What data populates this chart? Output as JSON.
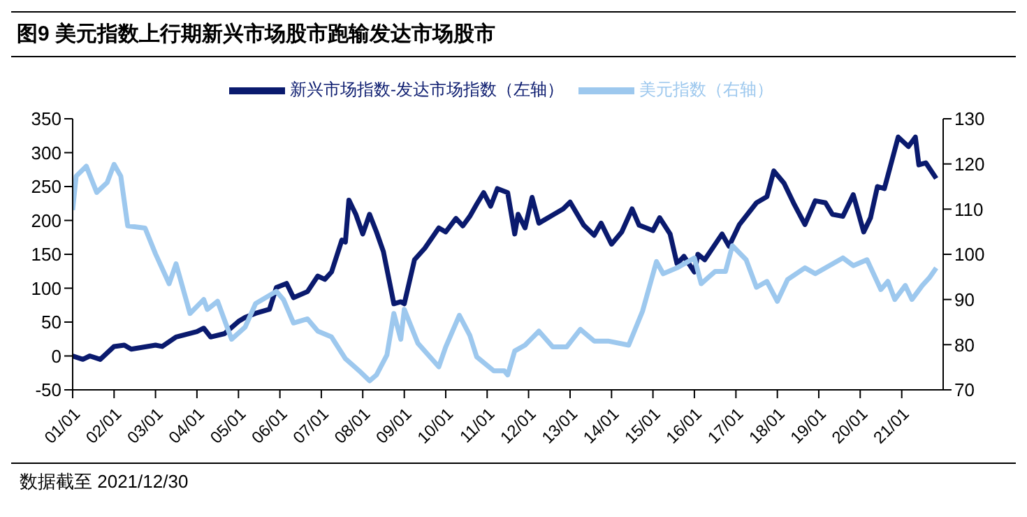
{
  "chart_data": {
    "type": "line",
    "title": "图9  美元指数上行期新兴市场股市跑输发达市场股市",
    "annotations": [
      "数据截至 2021/12/30"
    ],
    "xlim": [
      "2001-01",
      "2022-01"
    ],
    "xticks": [
      {
        "value": "2001-01",
        "label": "01/01"
      },
      {
        "value": "2002-01",
        "label": "02/01"
      },
      {
        "value": "2003-01",
        "label": "03/01"
      },
      {
        "value": "2004-01",
        "label": "04/01"
      },
      {
        "value": "2005-01",
        "label": "05/01"
      },
      {
        "value": "2006-01",
        "label": "06/01"
      },
      {
        "value": "2007-01",
        "label": "07/01"
      },
      {
        "value": "2008-01",
        "label": "08/01"
      },
      {
        "value": "2009-01",
        "label": "09/01"
      },
      {
        "value": "2010-01",
        "label": "10/01"
      },
      {
        "value": "2011-01",
        "label": "11/01"
      },
      {
        "value": "2012-01",
        "label": "12/01"
      },
      {
        "value": "2013-01",
        "label": "13/01"
      },
      {
        "value": "2014-01",
        "label": "14/01"
      },
      {
        "value": "2015-01",
        "label": "15/01"
      },
      {
        "value": "2016-01",
        "label": "16/01"
      },
      {
        "value": "2017-01",
        "label": "17/01"
      },
      {
        "value": "2018-01",
        "label": "18/01"
      },
      {
        "value": "2019-01",
        "label": "19/01"
      },
      {
        "value": "2020-01",
        "label": "20/01"
      },
      {
        "value": "2021-01",
        "label": "21/01"
      }
    ],
    "ylim": [
      -50,
      350
    ],
    "yticks": [
      -50,
      0,
      50,
      100,
      150,
      200,
      250,
      300,
      350
    ],
    "y2lim": [
      70,
      130
    ],
    "y2ticks": [
      70,
      80,
      90,
      100,
      110,
      120,
      130
    ],
    "legend": "top",
    "grid": false,
    "marker": "none",
    "line_style": "solid",
    "series": [
      {
        "name": "新兴市场指数-发达市场指数（左轴）",
        "color": "#0a1a6e",
        "axis": "y",
        "x": [
          "2001-01",
          "2001-04",
          "2001-06",
          "2001-09",
          "2002-01",
          "2002-04",
          "2002-06",
          "2003-01",
          "2003-03",
          "2003-07",
          "2004-01",
          "2004-03",
          "2004-05",
          "2004-09",
          "2005-01",
          "2005-03",
          "2005-06",
          "2005-10",
          "2005-12",
          "2006-03",
          "2006-05",
          "2006-09",
          "2006-12",
          "2007-02",
          "2007-04",
          "2007-07",
          "2007-08",
          "2007-09",
          "2007-11",
          "2008-01",
          "2008-03",
          "2008-05",
          "2008-07",
          "2008-10",
          "2008-12",
          "2009-01",
          "2009-04",
          "2009-07",
          "2009-11",
          "2010-01",
          "2010-04",
          "2010-06",
          "2010-08",
          "2010-10",
          "2010-12",
          "2011-02",
          "2011-04",
          "2011-07",
          "2011-09",
          "2011-10",
          "2011-12",
          "2012-02",
          "2012-04",
          "2012-08",
          "2012-11",
          "2013-01",
          "2013-05",
          "2013-08",
          "2013-10",
          "2014-01",
          "2014-04",
          "2014-07",
          "2014-09",
          "2015-01",
          "2015-03",
          "2015-06",
          "2015-08",
          "2015-10",
          "2016-01",
          "2016-02",
          "2016-04",
          "2016-09",
          "2016-11",
          "2017-02",
          "2017-07",
          "2017-10",
          "2017-12",
          "2018-03",
          "2018-06",
          "2018-09",
          "2018-12",
          "2019-03",
          "2019-05",
          "2019-08",
          "2019-11",
          "2020-02",
          "2020-04",
          "2020-06",
          "2020-08",
          "2020-12",
          "2021-03",
          "2021-05",
          "2021-06",
          "2021-08",
          "2021-11"
        ],
        "values": [
          0,
          -5,
          0,
          -5,
          14,
          16,
          10,
          16,
          14,
          28,
          36,
          41,
          28,
          33,
          51,
          57,
          63,
          69,
          101,
          107,
          86,
          95,
          118,
          113,
          124,
          171,
          168,
          230,
          209,
          180,
          209,
          183,
          154,
          77,
          80,
          77,
          142,
          159,
          189,
          183,
          203,
          192,
          206,
          224,
          241,
          221,
          247,
          241,
          180,
          209,
          189,
          234,
          196,
          208,
          217,
          227,
          193,
          178,
          196,
          165,
          183,
          217,
          193,
          185,
          204,
          180,
          136,
          147,
          124,
          150,
          142,
          180,
          162,
          194,
          226,
          235,
          273,
          255,
          223,
          194,
          229,
          226,
          209,
          206,
          238,
          183,
          204,
          250,
          247,
          323,
          309,
          323,
          282,
          285,
          262
        ]
      },
      {
        "name": "美元指数（右轴）",
        "color": "#9dc8ee",
        "axis": "y2",
        "x": [
          "2001-01",
          "2001-02",
          "2001-05",
          "2001-08",
          "2001-11",
          "2002-01",
          "2002-03",
          "2002-05",
          "2002-10",
          "2003-01",
          "2003-05",
          "2003-07",
          "2003-11",
          "2004-03",
          "2004-04",
          "2004-07",
          "2004-11",
          "2005-03",
          "2005-06",
          "2005-12",
          "2006-02",
          "2006-05",
          "2006-09",
          "2006-12",
          "2007-04",
          "2007-08",
          "2007-12",
          "2008-03",
          "2008-05",
          "2008-08",
          "2008-10",
          "2008-12",
          "2009-01",
          "2009-05",
          "2009-11",
          "2010-01",
          "2010-05",
          "2010-08",
          "2010-10",
          "2011-03",
          "2011-06",
          "2011-07",
          "2011-09",
          "2011-12",
          "2012-04",
          "2012-08",
          "2012-12",
          "2013-04",
          "2013-08",
          "2013-12",
          "2014-06",
          "2014-10",
          "2015-02",
          "2015-04",
          "2015-08",
          "2016-01",
          "2016-03",
          "2016-07",
          "2016-10",
          "2016-12",
          "2017-04",
          "2017-07",
          "2017-10",
          "2018-01",
          "2018-04",
          "2018-09",
          "2018-12",
          "2019-08",
          "2019-11",
          "2020-03",
          "2020-07",
          "2020-09",
          "2020-11",
          "2021-02",
          "2021-04",
          "2021-07",
          "2021-09",
          "2021-11"
        ],
        "values": [
          109.8,
          117.3,
          119.5,
          113.7,
          115.9,
          119.9,
          117.3,
          106.3,
          105.8,
          100.1,
          93.5,
          97.9,
          86.9,
          90.0,
          87.8,
          89.6,
          81.2,
          83.9,
          89.1,
          91.8,
          90.0,
          84.8,
          85.7,
          83.0,
          81.7,
          76.9,
          74.2,
          72.0,
          73.3,
          77.7,
          86.9,
          81.2,
          87.8,
          80.3,
          75.1,
          79.5,
          86.5,
          82.1,
          77.3,
          74.2,
          74.2,
          73.3,
          78.6,
          79.9,
          83.0,
          79.5,
          79.5,
          83.4,
          80.8,
          80.8,
          79.9,
          87.4,
          98.4,
          95.7,
          97.0,
          99.2,
          93.5,
          96.2,
          96.2,
          101.9,
          98.8,
          92.7,
          94.0,
          89.6,
          94.4,
          97.0,
          95.7,
          99.2,
          97.5,
          98.8,
          92.2,
          94.0,
          90.0,
          93.1,
          90.0,
          93.1,
          94.8,
          97.0
        ]
      }
    ]
  }
}
